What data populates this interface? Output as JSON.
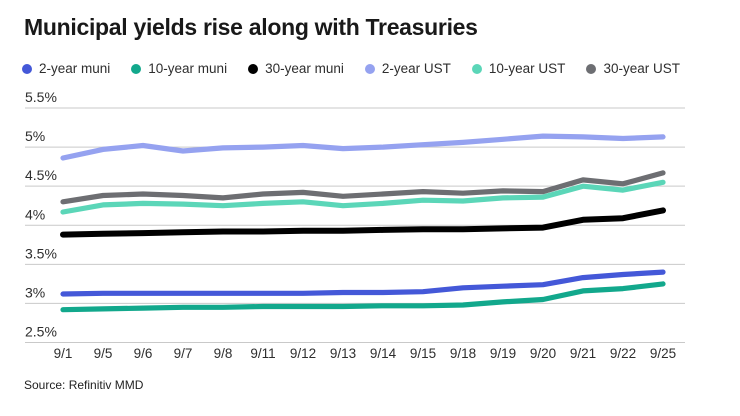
{
  "title": "Municipal yields rise along with Treasuries",
  "source": "Source: Refinitiv MMD",
  "chart_data": {
    "type": "line",
    "title": "Municipal yields rise along with Treasuries",
    "xlabel": "",
    "ylabel": "",
    "ylabel_format": "percent",
    "ylim": [
      2.5,
      5.5
    ],
    "yticks": [
      "5.5%",
      "5%",
      "4.5%",
      "4%",
      "3.5%",
      "3%",
      "2.5%"
    ],
    "ytick_values": [
      5.5,
      5.0,
      4.5,
      4.0,
      3.5,
      3.0,
      2.5
    ],
    "grid": "horizontal",
    "gridline_color": "#c9c9c9",
    "legend_position": "top",
    "x": [
      "9/1",
      "9/5",
      "9/6",
      "9/7",
      "9/8",
      "9/11",
      "9/12",
      "9/13",
      "9/14",
      "9/15",
      "9/18",
      "9/19",
      "9/20",
      "9/21",
      "9/22",
      "9/25"
    ],
    "series": [
      {
        "name": "2-year muni",
        "color": "#4458d8",
        "values": [
          3.12,
          3.13,
          3.13,
          3.13,
          3.13,
          3.13,
          3.13,
          3.14,
          3.14,
          3.15,
          3.2,
          3.22,
          3.24,
          3.33,
          3.37,
          3.4
        ]
      },
      {
        "name": "10-year muni",
        "color": "#12a88c",
        "values": [
          2.92,
          2.93,
          2.94,
          2.95,
          2.95,
          2.96,
          2.96,
          2.96,
          2.97,
          2.97,
          2.98,
          3.02,
          3.05,
          3.16,
          3.19,
          3.25
        ]
      },
      {
        "name": "30-year muni",
        "color": "#000000",
        "values": [
          3.88,
          3.89,
          3.9,
          3.91,
          3.92,
          3.92,
          3.93,
          3.93,
          3.94,
          3.95,
          3.95,
          3.96,
          3.97,
          4.07,
          4.09,
          4.19
        ]
      },
      {
        "name": "2-year UST",
        "color": "#95a2f0",
        "values": [
          4.86,
          4.97,
          5.02,
          4.95,
          4.99,
          5.0,
          5.02,
          4.98,
          5.0,
          5.03,
          5.06,
          5.1,
          5.14,
          5.13,
          5.11,
          5.13
        ]
      },
      {
        "name": "10-year UST",
        "color": "#5bd6b8",
        "values": [
          4.17,
          4.26,
          4.28,
          4.27,
          4.25,
          4.28,
          4.3,
          4.25,
          4.28,
          4.32,
          4.31,
          4.35,
          4.36,
          4.5,
          4.45,
          4.55
        ]
      },
      {
        "name": "30-year UST",
        "color": "#6d6e72",
        "values": [
          4.3,
          4.38,
          4.4,
          4.38,
          4.35,
          4.4,
          4.42,
          4.37,
          4.4,
          4.43,
          4.41,
          4.44,
          4.43,
          4.58,
          4.53,
          4.67
        ]
      }
    ]
  }
}
